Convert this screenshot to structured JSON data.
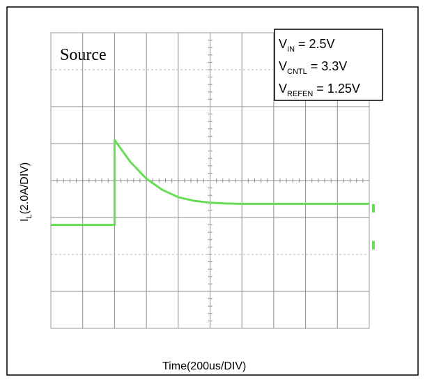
{
  "chart_data": {
    "type": "line",
    "title": "",
    "source_label": "Source",
    "xlabel": "Time(200us/DIV)",
    "ylabel": {
      "main": "I",
      "sub": "L",
      "rest": "(2.0A/DIV)"
    },
    "grid": true,
    "x_divisions": 10,
    "y_divisions": 8,
    "xlim": [
      0,
      10
    ],
    "ylim": [
      0,
      8
    ],
    "annotation": [
      {
        "main": "V",
        "sub": "IN",
        "rest": " = 2.5V"
      },
      {
        "main": "V",
        "sub": "CNTL",
        "rest": " = 3.3V"
      },
      {
        "main": "V",
        "sub": "REFEN",
        "rest": " = 1.25V"
      }
    ],
    "trace_color": "#66dd55",
    "series": [
      {
        "x": [
          0,
          1.0,
          1.99,
          2.0,
          2.0,
          2.5,
          3.0,
          3.5,
          4.0,
          4.5,
          5.0,
          5.5,
          6.0,
          7.0,
          8.0,
          9.0,
          10.0
        ],
        "y": [
          2.8,
          2.8,
          2.8,
          2.8,
          5.1,
          4.5,
          4.05,
          3.75,
          3.55,
          3.45,
          3.4,
          3.38,
          3.37,
          3.37,
          3.37,
          3.37,
          3.37
        ]
      }
    ],
    "end_markers": [
      {
        "x": 10.0,
        "y": 3.25
      },
      {
        "x": 10.0,
        "y": 2.25
      }
    ]
  }
}
